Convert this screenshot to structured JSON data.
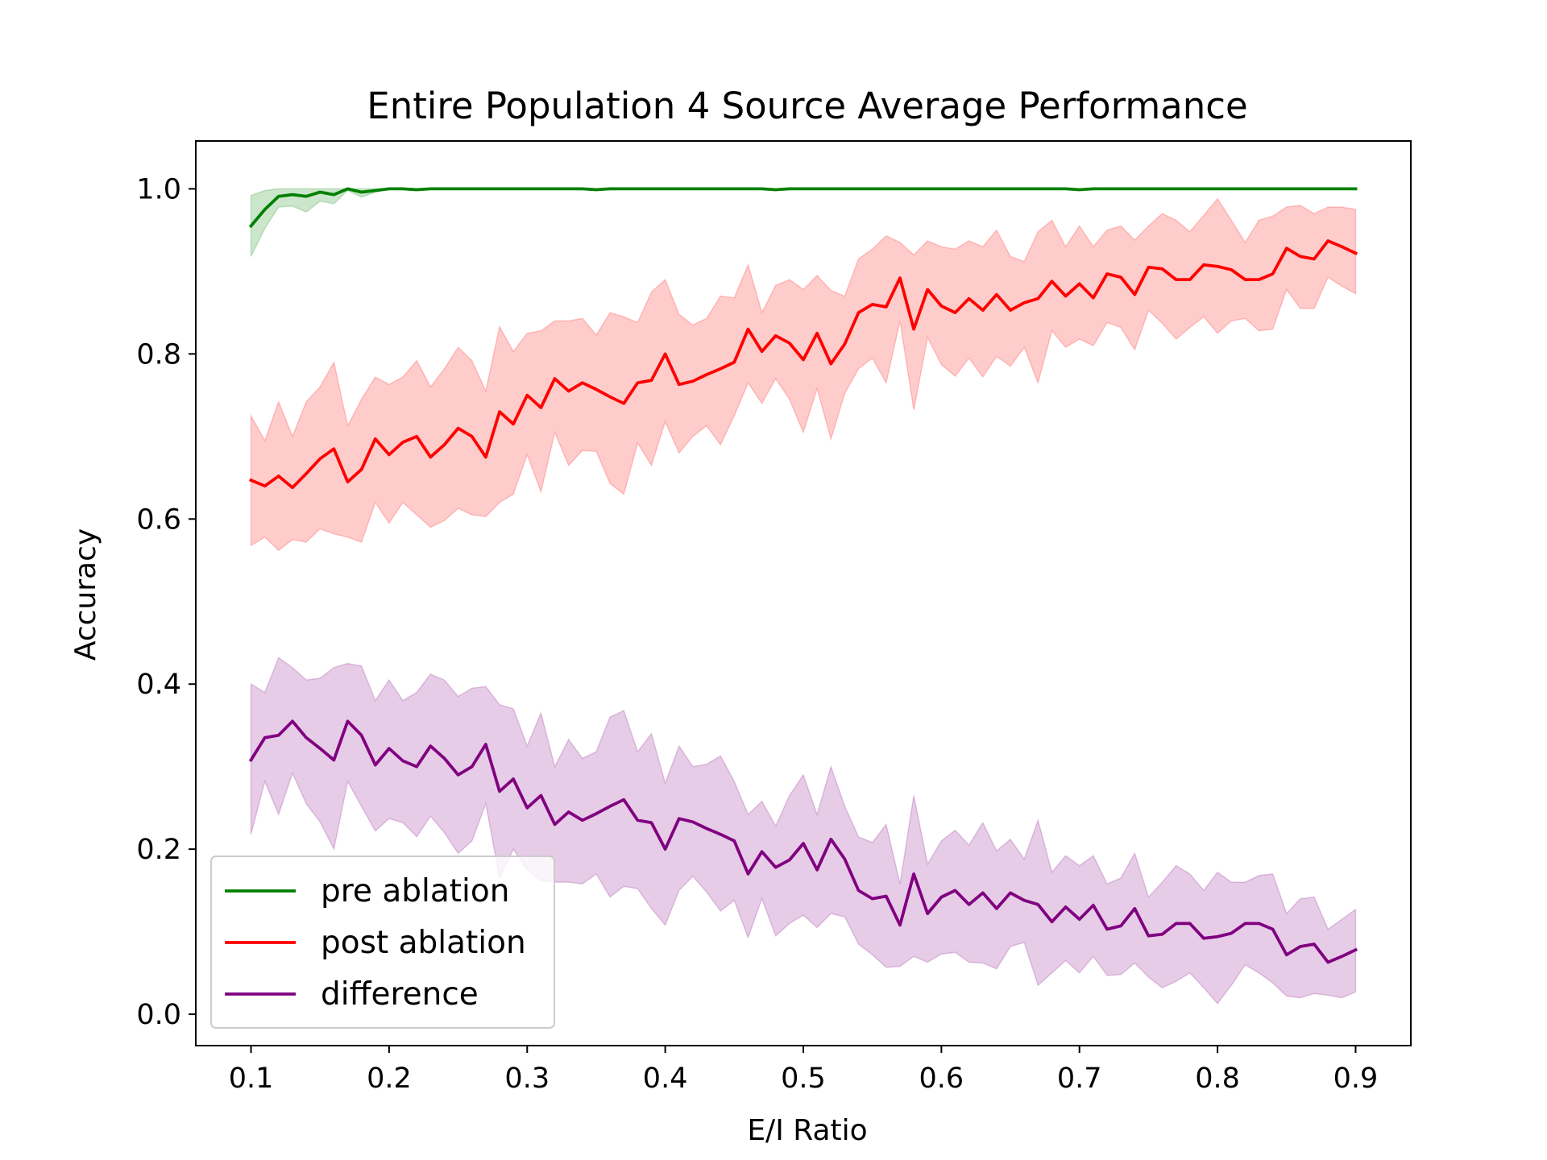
{
  "chart_data": {
    "type": "line",
    "title": "Entire Population 4 Source Average Performance",
    "xlabel": "E/I Ratio",
    "ylabel": "Accuracy",
    "xlim": [
      0.06,
      0.94
    ],
    "ylim": [
      -0.038,
      1.058
    ],
    "xticks": [
      "0.1",
      "0.2",
      "0.3",
      "0.4",
      "0.5",
      "0.6",
      "0.7",
      "0.8",
      "0.9"
    ],
    "yticks": [
      "0.0",
      "0.2",
      "0.4",
      "0.6",
      "0.8",
      "1.0"
    ],
    "grid": false,
    "legend_position": "lower-left",
    "x": [
      0.1,
      0.11,
      0.12,
      0.13,
      0.14,
      0.15,
      0.16,
      0.17,
      0.18,
      0.19,
      0.2,
      0.21,
      0.22,
      0.23,
      0.24,
      0.25,
      0.26,
      0.27,
      0.28,
      0.29,
      0.3,
      0.31,
      0.32,
      0.33,
      0.34,
      0.35,
      0.36,
      0.37,
      0.38,
      0.39,
      0.4,
      0.41,
      0.42,
      0.43,
      0.44,
      0.45,
      0.46,
      0.47,
      0.48,
      0.49,
      0.5,
      0.51,
      0.52,
      0.53,
      0.54,
      0.55,
      0.56,
      0.57,
      0.58,
      0.59,
      0.6,
      0.61,
      0.62,
      0.63,
      0.64,
      0.65,
      0.66,
      0.67,
      0.68,
      0.69,
      0.7,
      0.71,
      0.72,
      0.73,
      0.74,
      0.75,
      0.76,
      0.77,
      0.78,
      0.79,
      0.8,
      0.81,
      0.82,
      0.83,
      0.84,
      0.85,
      0.86,
      0.87,
      0.88,
      0.89,
      0.9
    ],
    "series": [
      {
        "name": "pre ablation",
        "color": "#008000",
        "fill": "#008000",
        "values": [
          0.955,
          0.975,
          0.991,
          0.993,
          0.991,
          0.996,
          0.993,
          1.0,
          0.996,
          0.998,
          1.0,
          1.0,
          0.999,
          1.0,
          1.0,
          1.0,
          1.0,
          1.0,
          1.0,
          1.0,
          1.0,
          1.0,
          1.0,
          1.0,
          1.0,
          0.999,
          1.0,
          1.0,
          1.0,
          1.0,
          1.0,
          1.0,
          1.0,
          1.0,
          1.0,
          1.0,
          1.0,
          1.0,
          0.999,
          1.0,
          1.0,
          1.0,
          1.0,
          1.0,
          1.0,
          1.0,
          1.0,
          1.0,
          1.0,
          1.0,
          1.0,
          1.0,
          1.0,
          1.0,
          1.0,
          1.0,
          1.0,
          1.0,
          1.0,
          1.0,
          0.999,
          1.0,
          1.0,
          1.0,
          1.0,
          1.0,
          1.0,
          1.0,
          1.0,
          1.0,
          1.0,
          1.0,
          1.0,
          1.0,
          1.0,
          1.0,
          1.0,
          1.0,
          1.0,
          1.0,
          1.0
        ],
        "upper": [
          0.992,
          0.998,
          1.0,
          1.0,
          1.0,
          1.0,
          1.0,
          1.0,
          1.0,
          1.0,
          1.0,
          1.0,
          1.0,
          1.0,
          1.0,
          1.0,
          1.0,
          1.0,
          1.0,
          1.0,
          1.0,
          1.0,
          1.0,
          1.0,
          1.0,
          1.0,
          1.0,
          1.0,
          1.0,
          1.0,
          1.0,
          1.0,
          1.0,
          1.0,
          1.0,
          1.0,
          1.0,
          1.0,
          1.0,
          1.0,
          1.0,
          1.0,
          1.0,
          1.0,
          1.0,
          1.0,
          1.0,
          1.0,
          1.0,
          1.0,
          1.0,
          1.0,
          1.0,
          1.0,
          1.0,
          1.0,
          1.0,
          1.0,
          1.0,
          1.0,
          1.0,
          1.0,
          1.0,
          1.0,
          1.0,
          1.0,
          1.0,
          1.0,
          1.0,
          1.0,
          1.0,
          1.0,
          1.0,
          1.0,
          1.0,
          1.0,
          1.0,
          1.0,
          1.0,
          1.0,
          1.0
        ],
        "lower": [
          0.918,
          0.952,
          0.978,
          0.979,
          0.972,
          0.985,
          0.982,
          0.998,
          0.99,
          0.996,
          1.0,
          0.999,
          0.998,
          1.0,
          1.0,
          1.0,
          1.0,
          1.0,
          1.0,
          1.0,
          1.0,
          1.0,
          1.0,
          1.0,
          1.0,
          0.998,
          1.0,
          1.0,
          1.0,
          1.0,
          1.0,
          1.0,
          1.0,
          1.0,
          1.0,
          1.0,
          1.0,
          1.0,
          0.998,
          1.0,
          1.0,
          1.0,
          1.0,
          1.0,
          1.0,
          1.0,
          1.0,
          1.0,
          1.0,
          1.0,
          1.0,
          1.0,
          1.0,
          1.0,
          1.0,
          1.0,
          1.0,
          1.0,
          1.0,
          1.0,
          0.998,
          1.0,
          1.0,
          1.0,
          1.0,
          1.0,
          1.0,
          1.0,
          1.0,
          1.0,
          1.0,
          1.0,
          1.0,
          1.0,
          1.0,
          1.0,
          1.0,
          1.0,
          1.0,
          1.0,
          1.0
        ]
      },
      {
        "name": "post ablation",
        "color": "#ff0000",
        "fill": "#ff0000",
        "values": [
          0.647,
          0.64,
          0.652,
          0.638,
          0.655,
          0.673,
          0.685,
          0.645,
          0.66,
          0.697,
          0.678,
          0.693,
          0.7,
          0.675,
          0.69,
          0.71,
          0.7,
          0.675,
          0.73,
          0.715,
          0.75,
          0.735,
          0.77,
          0.755,
          0.765,
          0.757,
          0.748,
          0.74,
          0.765,
          0.768,
          0.8,
          0.763,
          0.767,
          0.775,
          0.782,
          0.79,
          0.83,
          0.803,
          0.822,
          0.813,
          0.793,
          0.825,
          0.788,
          0.812,
          0.85,
          0.86,
          0.857,
          0.892,
          0.83,
          0.878,
          0.858,
          0.85,
          0.867,
          0.853,
          0.872,
          0.853,
          0.862,
          0.867,
          0.888,
          0.87,
          0.885,
          0.868,
          0.897,
          0.893,
          0.872,
          0.905,
          0.903,
          0.89,
          0.89,
          0.908,
          0.906,
          0.902,
          0.89,
          0.89,
          0.897,
          0.928,
          0.918,
          0.915,
          0.937,
          0.93,
          0.922
        ],
        "upper": [
          0.725,
          0.695,
          0.742,
          0.7,
          0.742,
          0.76,
          0.79,
          0.713,
          0.745,
          0.772,
          0.763,
          0.772,
          0.792,
          0.76,
          0.782,
          0.808,
          0.792,
          0.755,
          0.833,
          0.803,
          0.825,
          0.828,
          0.84,
          0.84,
          0.843,
          0.823,
          0.85,
          0.845,
          0.838,
          0.875,
          0.89,
          0.848,
          0.835,
          0.843,
          0.87,
          0.868,
          0.908,
          0.85,
          0.883,
          0.89,
          0.878,
          0.895,
          0.877,
          0.87,
          0.915,
          0.927,
          0.943,
          0.935,
          0.92,
          0.937,
          0.93,
          0.927,
          0.937,
          0.93,
          0.95,
          0.918,
          0.912,
          0.948,
          0.962,
          0.93,
          0.955,
          0.93,
          0.95,
          0.955,
          0.938,
          0.955,
          0.97,
          0.962,
          0.948,
          0.968,
          0.988,
          0.962,
          0.935,
          0.962,
          0.967,
          0.978,
          0.98,
          0.97,
          0.978,
          0.978,
          0.975
        ],
        "lower": [
          0.568,
          0.578,
          0.562,
          0.575,
          0.572,
          0.588,
          0.582,
          0.578,
          0.572,
          0.62,
          0.595,
          0.62,
          0.605,
          0.59,
          0.598,
          0.613,
          0.605,
          0.603,
          0.62,
          0.63,
          0.678,
          0.633,
          0.705,
          0.665,
          0.683,
          0.682,
          0.643,
          0.63,
          0.692,
          0.665,
          0.718,
          0.68,
          0.7,
          0.713,
          0.69,
          0.725,
          0.765,
          0.74,
          0.77,
          0.745,
          0.705,
          0.758,
          0.697,
          0.752,
          0.782,
          0.795,
          0.765,
          0.84,
          0.732,
          0.82,
          0.787,
          0.773,
          0.795,
          0.772,
          0.797,
          0.785,
          0.808,
          0.765,
          0.828,
          0.808,
          0.818,
          0.81,
          0.838,
          0.832,
          0.805,
          0.853,
          0.837,
          0.818,
          0.832,
          0.845,
          0.825,
          0.84,
          0.843,
          0.828,
          0.83,
          0.878,
          0.855,
          0.855,
          0.893,
          0.882,
          0.873
        ]
      },
      {
        "name": "difference",
        "color": "#800080",
        "fill": "#800080",
        "values": [
          0.308,
          0.335,
          0.338,
          0.355,
          0.335,
          0.322,
          0.308,
          0.355,
          0.338,
          0.302,
          0.322,
          0.307,
          0.3,
          0.325,
          0.31,
          0.29,
          0.3,
          0.327,
          0.27,
          0.285,
          0.25,
          0.265,
          0.23,
          0.245,
          0.235,
          0.243,
          0.252,
          0.26,
          0.235,
          0.232,
          0.2,
          0.237,
          0.233,
          0.225,
          0.218,
          0.21,
          0.17,
          0.197,
          0.178,
          0.187,
          0.207,
          0.175,
          0.212,
          0.188,
          0.15,
          0.14,
          0.143,
          0.108,
          0.17,
          0.122,
          0.142,
          0.15,
          0.133,
          0.147,
          0.128,
          0.147,
          0.138,
          0.133,
          0.112,
          0.13,
          0.115,
          0.132,
          0.103,
          0.107,
          0.128,
          0.095,
          0.097,
          0.11,
          0.11,
          0.092,
          0.094,
          0.098,
          0.11,
          0.11,
          0.103,
          0.072,
          0.082,
          0.085,
          0.063,
          0.07,
          0.078
        ],
        "upper": [
          0.4,
          0.39,
          0.432,
          0.42,
          0.405,
          0.407,
          0.42,
          0.425,
          0.422,
          0.38,
          0.405,
          0.38,
          0.39,
          0.412,
          0.405,
          0.385,
          0.395,
          0.397,
          0.375,
          0.37,
          0.325,
          0.365,
          0.3,
          0.333,
          0.31,
          0.318,
          0.36,
          0.368,
          0.318,
          0.34,
          0.28,
          0.325,
          0.3,
          0.303,
          0.313,
          0.282,
          0.242,
          0.258,
          0.228,
          0.265,
          0.29,
          0.242,
          0.3,
          0.252,
          0.215,
          0.208,
          0.23,
          0.158,
          0.265,
          0.182,
          0.21,
          0.223,
          0.205,
          0.232,
          0.198,
          0.212,
          0.188,
          0.235,
          0.172,
          0.192,
          0.18,
          0.192,
          0.158,
          0.165,
          0.195,
          0.142,
          0.16,
          0.18,
          0.17,
          0.15,
          0.172,
          0.16,
          0.16,
          0.168,
          0.17,
          0.122,
          0.14,
          0.142,
          0.103,
          0.115,
          0.127
        ],
        "lower": [
          0.218,
          0.282,
          0.242,
          0.292,
          0.255,
          0.233,
          0.2,
          0.282,
          0.252,
          0.222,
          0.237,
          0.232,
          0.215,
          0.24,
          0.22,
          0.195,
          0.21,
          0.255,
          0.165,
          0.2,
          0.175,
          0.162,
          0.16,
          0.16,
          0.158,
          0.17,
          0.142,
          0.155,
          0.152,
          0.128,
          0.108,
          0.15,
          0.167,
          0.148,
          0.125,
          0.138,
          0.093,
          0.14,
          0.095,
          0.11,
          0.12,
          0.105,
          0.122,
          0.118,
          0.085,
          0.072,
          0.057,
          0.058,
          0.07,
          0.063,
          0.073,
          0.075,
          0.063,
          0.062,
          0.055,
          0.082,
          0.087,
          0.035,
          0.05,
          0.065,
          0.05,
          0.07,
          0.047,
          0.048,
          0.062,
          0.045,
          0.032,
          0.04,
          0.05,
          0.032,
          0.013,
          0.035,
          0.06,
          0.05,
          0.038,
          0.022,
          0.02,
          0.025,
          0.023,
          0.02,
          0.027
        ]
      }
    ]
  }
}
